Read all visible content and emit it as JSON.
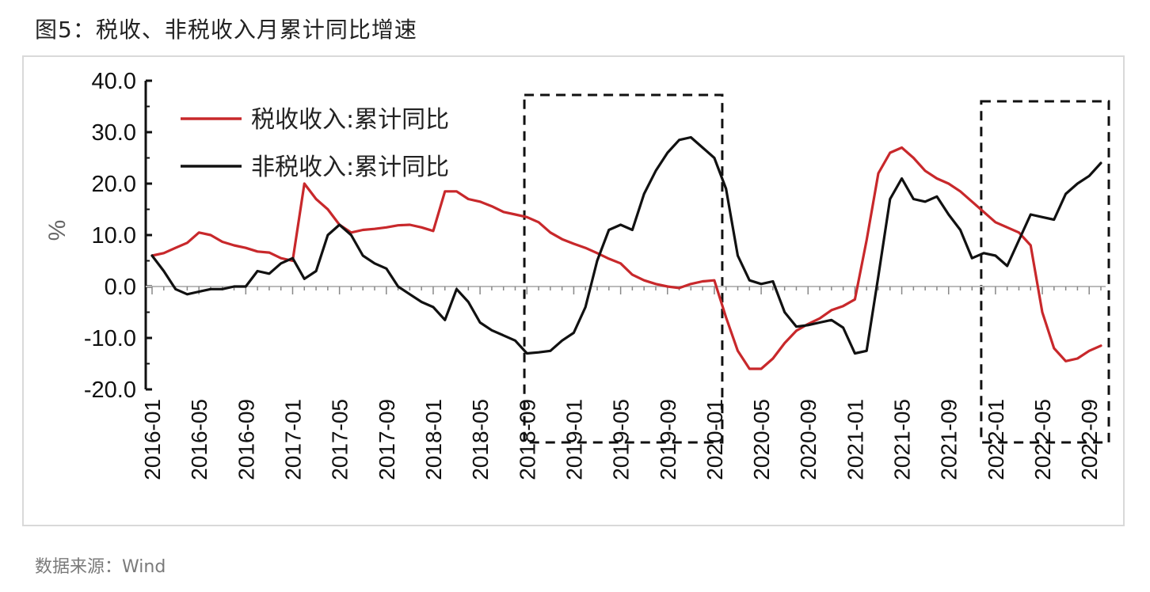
{
  "title": "图5：税收、非税收入月累计同比增速",
  "source": "数据来源：Wind",
  "colors": {
    "tax": "#c8282b",
    "nontax": "#111111",
    "axis": "#111111",
    "ylabel": "#666666"
  },
  "chart_data": {
    "type": "line",
    "ylabel": "%",
    "ylim": [
      -20,
      40
    ],
    "yticks": [
      -20,
      -10,
      0,
      10,
      20,
      30,
      40
    ],
    "ytick_labels": [
      "-20.0",
      "-10.0",
      "0.0",
      "10.0",
      "20.0",
      "30.0",
      "40.0"
    ],
    "x_start": "2016-01",
    "x_end": "2022-10",
    "xtick_labels": [
      "2016-01",
      "2016-05",
      "2016-09",
      "2017-01",
      "2017-05",
      "2017-09",
      "2018-01",
      "2018-05",
      "2018-09",
      "2019-01",
      "2019-05",
      "2019-09",
      "2020-01",
      "2020-05",
      "2020-09",
      "2021-01",
      "2021-05",
      "2021-09",
      "2022-01",
      "2022-05",
      "2022-09"
    ],
    "legend_position": "top-left",
    "highlight_boxes": [
      {
        "from": "2018-10",
        "to": "2020-01"
      },
      {
        "from": "2022-01",
        "to": "2022-10"
      }
    ],
    "series": [
      {
        "name": "税收收入:累计同比",
        "points": [
          [
            "2016-01",
            6
          ],
          [
            "2016-02",
            6.5
          ],
          [
            "2016-03",
            7.5
          ],
          [
            "2016-04",
            8.5
          ],
          [
            "2016-05",
            10.5
          ],
          [
            "2016-06",
            10
          ],
          [
            "2016-07",
            8.7
          ],
          [
            "2016-08",
            8
          ],
          [
            "2016-09",
            7.5
          ],
          [
            "2016-10",
            6.8
          ],
          [
            "2016-11",
            6.6
          ],
          [
            "2016-12",
            5.5
          ],
          [
            "2017-01",
            5
          ],
          [
            "2017-02",
            20
          ],
          [
            "2017-03",
            17
          ],
          [
            "2017-04",
            15
          ],
          [
            "2017-05",
            12
          ],
          [
            "2017-06",
            10.5
          ],
          [
            "2017-07",
            11
          ],
          [
            "2017-08",
            11.2
          ],
          [
            "2017-09",
            11.5
          ],
          [
            "2017-10",
            11.9
          ],
          [
            "2017-11",
            12
          ],
          [
            "2017-12",
            11.5
          ],
          [
            "2018-01",
            10.8
          ],
          [
            "2018-02",
            18.5
          ],
          [
            "2018-03",
            18.5
          ],
          [
            "2018-04",
            17
          ],
          [
            "2018-05",
            16.5
          ],
          [
            "2018-06",
            15.6
          ],
          [
            "2018-07",
            14.5
          ],
          [
            "2018-08",
            14
          ],
          [
            "2018-09",
            13.5
          ],
          [
            "2018-10",
            12.5
          ],
          [
            "2018-11",
            10.5
          ],
          [
            "2018-12",
            9.2
          ],
          [
            "2019-01",
            8.3
          ],
          [
            "2019-02",
            7.5
          ],
          [
            "2019-03",
            6.5
          ],
          [
            "2019-04",
            5.4
          ],
          [
            "2019-05",
            4.5
          ],
          [
            "2019-06",
            2.3
          ],
          [
            "2019-07",
            1.2
          ],
          [
            "2019-08",
            0.5
          ],
          [
            "2019-09",
            0
          ],
          [
            "2019-10",
            -0.3
          ],
          [
            "2019-11",
            0.5
          ],
          [
            "2019-12",
            1
          ],
          [
            "2020-01",
            1.2
          ],
          [
            "2020-02",
            -6
          ],
          [
            "2020-03",
            -12.5
          ],
          [
            "2020-04",
            -16
          ],
          [
            "2020-05",
            -16
          ],
          [
            "2020-06",
            -14
          ],
          [
            "2020-07",
            -11
          ],
          [
            "2020-08",
            -8.6
          ],
          [
            "2020-09",
            -7.3
          ],
          [
            "2020-10",
            -6.2
          ],
          [
            "2020-11",
            -4.6
          ],
          [
            "2020-12",
            -3.8
          ],
          [
            "2021-01",
            -2.5
          ],
          [
            "2021-02",
            9
          ],
          [
            "2021-03",
            22
          ],
          [
            "2021-04",
            26
          ],
          [
            "2021-05",
            27
          ],
          [
            "2021-06",
            25
          ],
          [
            "2021-07",
            22.5
          ],
          [
            "2021-08",
            21
          ],
          [
            "2021-09",
            20
          ],
          [
            "2021-10",
            18.5
          ],
          [
            "2021-11",
            16.5
          ],
          [
            "2021-12",
            14.5
          ],
          [
            "2022-01",
            12.5
          ],
          [
            "2022-02",
            11.5
          ],
          [
            "2022-03",
            10.5
          ],
          [
            "2022-04",
            8
          ],
          [
            "2022-05",
            -5
          ],
          [
            "2022-06",
            -12
          ],
          [
            "2022-07",
            -14.5
          ],
          [
            "2022-08",
            -14
          ],
          [
            "2022-09",
            -12.5
          ],
          [
            "2022-10",
            -11.5
          ]
        ]
      },
      {
        "name": "非税收入:累计同比",
        "points": [
          [
            "2016-01",
            6
          ],
          [
            "2016-02",
            3
          ],
          [
            "2016-03",
            -0.5
          ],
          [
            "2016-04",
            -1.5
          ],
          [
            "2016-05",
            -1
          ],
          [
            "2016-06",
            -0.5
          ],
          [
            "2016-07",
            -0.5
          ],
          [
            "2016-08",
            0
          ],
          [
            "2016-09",
            0
          ],
          [
            "2016-10",
            3
          ],
          [
            "2016-11",
            2.5
          ],
          [
            "2016-12",
            4.5
          ],
          [
            "2017-01",
            5.5
          ],
          [
            "2017-02",
            1.5
          ],
          [
            "2017-03",
            3
          ],
          [
            "2017-04",
            10
          ],
          [
            "2017-05",
            12
          ],
          [
            "2017-06",
            10
          ],
          [
            "2017-07",
            6
          ],
          [
            "2017-08",
            4.5
          ],
          [
            "2017-09",
            3.5
          ],
          [
            "2017-10",
            0
          ],
          [
            "2017-11",
            -1.5
          ],
          [
            "2017-12",
            -3
          ],
          [
            "2018-01",
            -4
          ],
          [
            "2018-02",
            -6.5
          ],
          [
            "2018-03",
            -0.5
          ],
          [
            "2018-04",
            -3
          ],
          [
            "2018-05",
            -7
          ],
          [
            "2018-06",
            -8.5
          ],
          [
            "2018-07",
            -9.5
          ],
          [
            "2018-08",
            -10.5
          ],
          [
            "2018-09",
            -13
          ],
          [
            "2018-10",
            -12.8
          ],
          [
            "2018-11",
            -12.5
          ],
          [
            "2018-12",
            -10.5
          ],
          [
            "2019-01",
            -9
          ],
          [
            "2019-02",
            -4
          ],
          [
            "2019-03",
            5
          ],
          [
            "2019-04",
            11
          ],
          [
            "2019-05",
            12
          ],
          [
            "2019-06",
            11
          ],
          [
            "2019-07",
            18
          ],
          [
            "2019-08",
            22.5
          ],
          [
            "2019-09",
            26
          ],
          [
            "2019-10",
            28.5
          ],
          [
            "2019-11",
            29
          ],
          [
            "2019-12",
            27
          ],
          [
            "2020-01",
            25
          ],
          [
            "2020-02",
            19
          ],
          [
            "2020-03",
            6
          ],
          [
            "2020-04",
            1.2
          ],
          [
            "2020-05",
            0.5
          ],
          [
            "2020-06",
            1
          ],
          [
            "2020-07",
            -5
          ],
          [
            "2020-08",
            -7.8
          ],
          [
            "2020-09",
            -7.5
          ],
          [
            "2020-10",
            -7
          ],
          [
            "2020-11",
            -6.5
          ],
          [
            "2020-12",
            -8
          ],
          [
            "2021-01",
            -13
          ],
          [
            "2021-02",
            -12.5
          ],
          [
            "2021-03",
            2
          ],
          [
            "2021-04",
            17
          ],
          [
            "2021-05",
            21
          ],
          [
            "2021-06",
            17
          ],
          [
            "2021-07",
            16.5
          ],
          [
            "2021-08",
            17.5
          ],
          [
            "2021-09",
            14
          ],
          [
            "2021-10",
            11
          ],
          [
            "2021-11",
            5.5
          ],
          [
            "2021-12",
            6.5
          ],
          [
            "2022-01",
            6
          ],
          [
            "2022-02",
            4
          ],
          [
            "2022-03",
            9
          ],
          [
            "2022-04",
            14
          ],
          [
            "2022-05",
            13.5
          ],
          [
            "2022-06",
            13
          ],
          [
            "2022-07",
            18
          ],
          [
            "2022-08",
            20
          ],
          [
            "2022-09",
            21.5
          ],
          [
            "2022-10",
            24
          ]
        ]
      }
    ]
  }
}
